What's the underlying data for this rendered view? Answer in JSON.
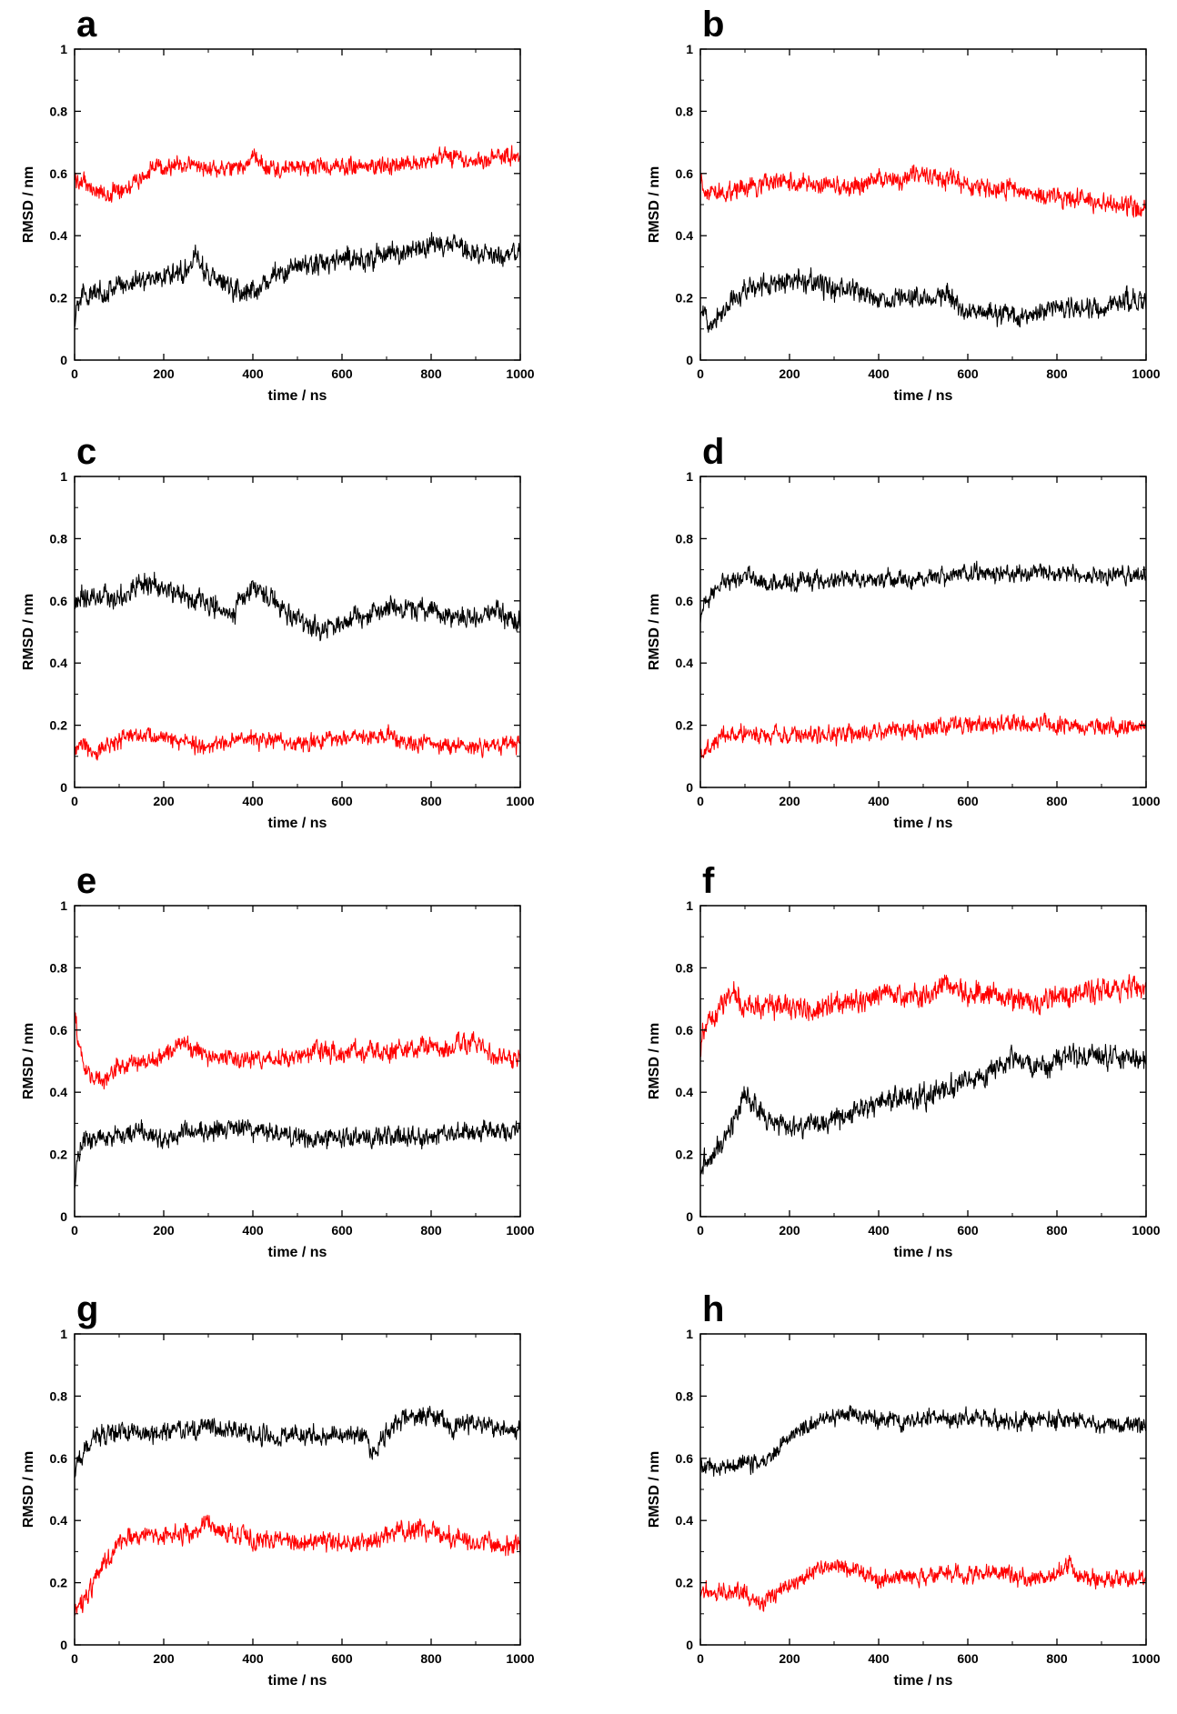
{
  "colors": {
    "black": "#000000",
    "red": "#ff0000"
  },
  "chart_data": [
    {
      "panel": "a",
      "type": "line",
      "xlabel": "time / ns",
      "ylabel": "RMSD / nm",
      "xlim": [
        0,
        1000
      ],
      "ylim": [
        0,
        1
      ],
      "xticks": [
        "0",
        "200",
        "400",
        "600",
        "800",
        "1000"
      ],
      "yticks": [
        "0",
        "0.2",
        "0.4",
        "0.6",
        "0.8",
        "1"
      ],
      "series": [
        {
          "color": "red",
          "noise": 0.016,
          "x": [
            0,
            25,
            50,
            75,
            100,
            150,
            175,
            200,
            250,
            300,
            350,
            380,
            400,
            450,
            500,
            550,
            600,
            650,
            700,
            750,
            800,
            850,
            900,
            950,
            980,
            1000
          ],
          "values": [
            0.58,
            0.57,
            0.54,
            0.53,
            0.55,
            0.58,
            0.62,
            0.62,
            0.63,
            0.62,
            0.61,
            0.63,
            0.65,
            0.61,
            0.62,
            0.62,
            0.62,
            0.62,
            0.63,
            0.63,
            0.65,
            0.65,
            0.64,
            0.65,
            0.66,
            0.64
          ]
        },
        {
          "color": "black",
          "noise": 0.02,
          "x": [
            0,
            5,
            25,
            50,
            100,
            150,
            200,
            250,
            270,
            300,
            350,
            400,
            450,
            500,
            550,
            600,
            650,
            700,
            750,
            800,
            850,
            900,
            950,
            1000
          ],
          "values": [
            0.1,
            0.2,
            0.21,
            0.21,
            0.24,
            0.26,
            0.27,
            0.29,
            0.34,
            0.27,
            0.23,
            0.22,
            0.27,
            0.3,
            0.31,
            0.33,
            0.32,
            0.34,
            0.35,
            0.37,
            0.37,
            0.34,
            0.33,
            0.35
          ]
        }
      ]
    },
    {
      "panel": "b",
      "type": "line",
      "xlabel": "time / ns",
      "ylabel": "RMSD / nm",
      "xlim": [
        0,
        1000
      ],
      "ylim": [
        0,
        1
      ],
      "xticks": [
        "0",
        "200",
        "400",
        "600",
        "800",
        "1000"
      ],
      "yticks": [
        "0",
        "0.2",
        "0.4",
        "0.6",
        "0.8",
        "1"
      ],
      "series": [
        {
          "color": "red",
          "noise": 0.018,
          "x": [
            0,
            5,
            50,
            100,
            150,
            200,
            250,
            300,
            350,
            400,
            450,
            500,
            550,
            600,
            650,
            700,
            750,
            800,
            850,
            900,
            950,
            1000
          ],
          "values": [
            0.6,
            0.55,
            0.54,
            0.55,
            0.57,
            0.57,
            0.56,
            0.56,
            0.56,
            0.58,
            0.58,
            0.59,
            0.59,
            0.56,
            0.55,
            0.55,
            0.53,
            0.52,
            0.52,
            0.51,
            0.49,
            0.48
          ]
        },
        {
          "color": "black",
          "noise": 0.02,
          "x": [
            0,
            25,
            50,
            100,
            150,
            200,
            250,
            300,
            350,
            400,
            450,
            500,
            550,
            600,
            650,
            700,
            750,
            800,
            850,
            900,
            950,
            1000
          ],
          "values": [
            0.15,
            0.13,
            0.16,
            0.23,
            0.24,
            0.25,
            0.25,
            0.23,
            0.22,
            0.19,
            0.2,
            0.21,
            0.21,
            0.15,
            0.15,
            0.14,
            0.15,
            0.17,
            0.17,
            0.16,
            0.19,
            0.2
          ]
        }
      ]
    },
    {
      "panel": "c",
      "type": "line",
      "xlabel": "time / ns",
      "ylabel": "RMSD / nm",
      "xlim": [
        0,
        1000
      ],
      "ylim": [
        0,
        1
      ],
      "xticks": [
        "0",
        "200",
        "400",
        "600",
        "800",
        "1000"
      ],
      "yticks": [
        "0",
        "0.2",
        "0.4",
        "0.6",
        "0.8",
        "1"
      ],
      "series": [
        {
          "color": "black",
          "noise": 0.02,
          "x": [
            0,
            50,
            100,
            150,
            200,
            250,
            300,
            350,
            400,
            450,
            500,
            550,
            600,
            650,
            700,
            750,
            800,
            850,
            900,
            950,
            1000
          ],
          "values": [
            0.6,
            0.61,
            0.61,
            0.66,
            0.64,
            0.61,
            0.6,
            0.55,
            0.65,
            0.6,
            0.53,
            0.51,
            0.53,
            0.56,
            0.58,
            0.57,
            0.56,
            0.55,
            0.55,
            0.56,
            0.53
          ]
        },
        {
          "color": "red",
          "noise": 0.016,
          "x": [
            0,
            50,
            100,
            150,
            200,
            250,
            300,
            350,
            400,
            450,
            500,
            550,
            600,
            650,
            700,
            750,
            800,
            850,
            900,
            950,
            1000
          ],
          "values": [
            0.13,
            0.12,
            0.15,
            0.17,
            0.16,
            0.14,
            0.13,
            0.15,
            0.16,
            0.15,
            0.14,
            0.15,
            0.16,
            0.16,
            0.17,
            0.14,
            0.14,
            0.13,
            0.13,
            0.14,
            0.13
          ]
        }
      ]
    },
    {
      "panel": "d",
      "type": "line",
      "xlabel": "time / ns",
      "ylabel": "RMSD / nm",
      "xlim": [
        0,
        1000
      ],
      "ylim": [
        0,
        1
      ],
      "xticks": [
        "0",
        "200",
        "400",
        "600",
        "800",
        "1000"
      ],
      "yticks": [
        "0",
        "0.2",
        "0.4",
        "0.6",
        "0.8",
        "1"
      ],
      "series": [
        {
          "color": "black",
          "noise": 0.016,
          "x": [
            0,
            5,
            25,
            50,
            100,
            150,
            200,
            300,
            400,
            500,
            600,
            700,
            800,
            900,
            1000
          ],
          "values": [
            0.52,
            0.58,
            0.62,
            0.65,
            0.68,
            0.66,
            0.66,
            0.67,
            0.67,
            0.67,
            0.69,
            0.69,
            0.69,
            0.68,
            0.68
          ]
        },
        {
          "color": "red",
          "noise": 0.016,
          "x": [
            0,
            25,
            50,
            100,
            150,
            200,
            300,
            400,
            500,
            600,
            700,
            800,
            900,
            1000
          ],
          "values": [
            0.11,
            0.13,
            0.16,
            0.18,
            0.17,
            0.17,
            0.17,
            0.18,
            0.19,
            0.2,
            0.2,
            0.2,
            0.19,
            0.19
          ]
        }
      ]
    },
    {
      "panel": "e",
      "type": "line",
      "xlabel": "time / ns",
      "ylabel": "RMSD / nm",
      "xlim": [
        0,
        1000
      ],
      "ylim": [
        0,
        1
      ],
      "xticks": [
        "0",
        "200",
        "400",
        "600",
        "800",
        "1000"
      ],
      "yticks": [
        "0",
        "0.2",
        "0.4",
        "0.6",
        "0.8",
        "1"
      ],
      "series": [
        {
          "color": "red",
          "noise": 0.018,
          "x": [
            0,
            5,
            25,
            50,
            75,
            100,
            150,
            200,
            240,
            300,
            350,
            400,
            450,
            500,
            550,
            600,
            650,
            700,
            750,
            800,
            850,
            900,
            950,
            1000
          ],
          "values": [
            0.68,
            0.6,
            0.46,
            0.44,
            0.44,
            0.49,
            0.49,
            0.51,
            0.57,
            0.51,
            0.51,
            0.5,
            0.51,
            0.52,
            0.53,
            0.53,
            0.53,
            0.52,
            0.54,
            0.55,
            0.54,
            0.56,
            0.51,
            0.51
          ]
        },
        {
          "color": "black",
          "noise": 0.018,
          "x": [
            0,
            5,
            25,
            50,
            100,
            150,
            200,
            250,
            300,
            350,
            400,
            450,
            500,
            550,
            600,
            650,
            700,
            750,
            800,
            850,
            900,
            950,
            1000
          ],
          "values": [
            0.1,
            0.2,
            0.24,
            0.25,
            0.26,
            0.27,
            0.25,
            0.27,
            0.27,
            0.29,
            0.28,
            0.27,
            0.26,
            0.25,
            0.25,
            0.25,
            0.26,
            0.26,
            0.26,
            0.27,
            0.27,
            0.28,
            0.28
          ]
        }
      ]
    },
    {
      "panel": "f",
      "type": "line",
      "xlabel": "time / ns",
      "ylabel": "RMSD / nm",
      "xlim": [
        0,
        1000
      ],
      "ylim": [
        0,
        1
      ],
      "xticks": [
        "0",
        "200",
        "400",
        "600",
        "800",
        "1000"
      ],
      "yticks": [
        "0",
        "0.2",
        "0.4",
        "0.6",
        "0.8",
        "1"
      ],
      "series": [
        {
          "color": "red",
          "noise": 0.022,
          "x": [
            0,
            5,
            25,
            50,
            75,
            100,
            150,
            200,
            250,
            300,
            350,
            400,
            450,
            500,
            550,
            600,
            650,
            700,
            750,
            800,
            850,
            900,
            950,
            1000
          ],
          "values": [
            0.52,
            0.58,
            0.64,
            0.68,
            0.73,
            0.67,
            0.68,
            0.67,
            0.66,
            0.68,
            0.69,
            0.72,
            0.72,
            0.7,
            0.75,
            0.72,
            0.71,
            0.7,
            0.69,
            0.71,
            0.72,
            0.73,
            0.74,
            0.73
          ]
        },
        {
          "color": "black",
          "noise": 0.022,
          "x": [
            0,
            5,
            25,
            50,
            75,
            100,
            150,
            200,
            250,
            300,
            350,
            400,
            450,
            500,
            550,
            600,
            650,
            700,
            750,
            800,
            850,
            900,
            950,
            1000
          ],
          "values": [
            0.13,
            0.16,
            0.2,
            0.24,
            0.3,
            0.4,
            0.31,
            0.28,
            0.29,
            0.31,
            0.34,
            0.38,
            0.37,
            0.38,
            0.41,
            0.44,
            0.46,
            0.52,
            0.48,
            0.5,
            0.51,
            0.52,
            0.51,
            0.5
          ]
        }
      ]
    },
    {
      "panel": "g",
      "type": "line",
      "xlabel": "time / ns",
      "ylabel": "RMSD / nm",
      "xlim": [
        0,
        1000
      ],
      "ylim": [
        0,
        1
      ],
      "xticks": [
        "0",
        "200",
        "400",
        "600",
        "800",
        "1000"
      ],
      "yticks": [
        "0",
        "0.2",
        "0.4",
        "0.6",
        "0.8",
        "1"
      ],
      "series": [
        {
          "color": "black",
          "noise": 0.018,
          "x": [
            0,
            5,
            25,
            50,
            100,
            150,
            200,
            250,
            300,
            350,
            400,
            450,
            500,
            550,
            600,
            650,
            670,
            700,
            750,
            800,
            850,
            900,
            950,
            1000
          ],
          "values": [
            0.55,
            0.58,
            0.63,
            0.67,
            0.69,
            0.68,
            0.68,
            0.69,
            0.7,
            0.69,
            0.68,
            0.67,
            0.67,
            0.67,
            0.67,
            0.67,
            0.61,
            0.69,
            0.73,
            0.74,
            0.7,
            0.71,
            0.7,
            0.69
          ]
        },
        {
          "color": "red",
          "noise": 0.018,
          "x": [
            0,
            5,
            25,
            50,
            75,
            100,
            150,
            200,
            250,
            300,
            350,
            400,
            450,
            500,
            550,
            600,
            650,
            700,
            750,
            800,
            850,
            900,
            950,
            1000
          ],
          "values": [
            0.08,
            0.12,
            0.16,
            0.22,
            0.28,
            0.33,
            0.35,
            0.35,
            0.36,
            0.39,
            0.36,
            0.34,
            0.34,
            0.33,
            0.33,
            0.33,
            0.33,
            0.35,
            0.37,
            0.37,
            0.34,
            0.33,
            0.32,
            0.32
          ]
        }
      ]
    },
    {
      "panel": "h",
      "type": "line",
      "xlabel": "time / ns",
      "ylabel": "RMSD / nm",
      "xlim": [
        0,
        1000
      ],
      "ylim": [
        0,
        1
      ],
      "xticks": [
        "0",
        "200",
        "400",
        "600",
        "800",
        "1000"
      ],
      "yticks": [
        "0",
        "0.2",
        "0.4",
        "0.6",
        "0.8",
        "1"
      ],
      "series": [
        {
          "color": "black",
          "noise": 0.016,
          "x": [
            0,
            50,
            100,
            150,
            200,
            250,
            300,
            350,
            400,
            450,
            500,
            550,
            600,
            650,
            700,
            750,
            800,
            850,
            900,
            950,
            1000
          ],
          "values": [
            0.57,
            0.57,
            0.58,
            0.59,
            0.67,
            0.71,
            0.73,
            0.74,
            0.72,
            0.72,
            0.73,
            0.73,
            0.73,
            0.72,
            0.72,
            0.72,
            0.72,
            0.72,
            0.71,
            0.71,
            0.71
          ]
        },
        {
          "color": "red",
          "noise": 0.016,
          "x": [
            0,
            50,
            100,
            140,
            150,
            200,
            250,
            300,
            350,
            400,
            450,
            500,
            550,
            600,
            650,
            700,
            750,
            800,
            830,
            850,
            900,
            950,
            1000
          ],
          "values": [
            0.17,
            0.17,
            0.17,
            0.13,
            0.15,
            0.18,
            0.24,
            0.25,
            0.24,
            0.21,
            0.22,
            0.22,
            0.23,
            0.23,
            0.23,
            0.22,
            0.22,
            0.23,
            0.27,
            0.22,
            0.21,
            0.21,
            0.21
          ]
        }
      ]
    }
  ]
}
